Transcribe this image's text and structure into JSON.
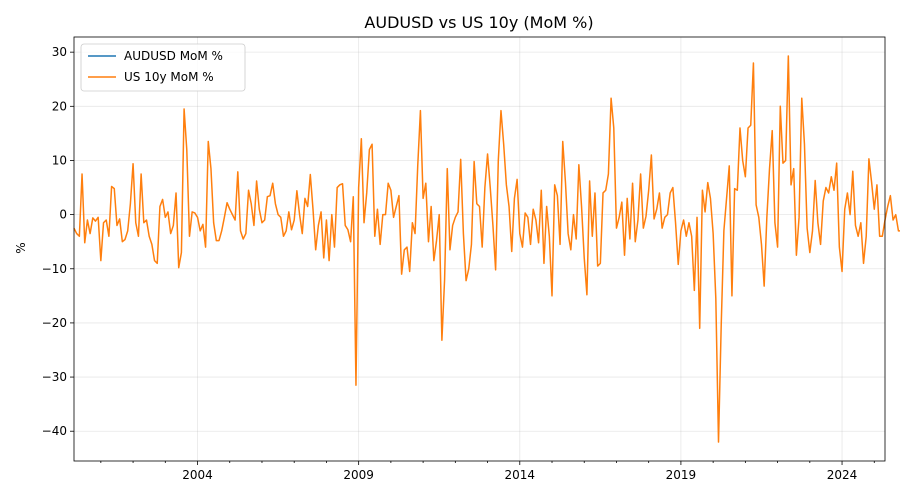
{
  "chart_data": {
    "type": "line",
    "title": "AUDUSD vs US 10y (MoM %)",
    "xlabel": "",
    "ylabel": "%",
    "xlim": [
      2000.167,
      2025.333
    ],
    "ylim": [
      -45.5,
      32.8
    ],
    "grid": true,
    "legend_position": "top-left",
    "x_ticks": [
      2004,
      2009,
      2014,
      2019,
      2024
    ],
    "y_ticks": [
      -40,
      -30,
      -20,
      -10,
      0,
      10,
      20,
      30
    ],
    "series": [
      {
        "name": "AUDUSD MoM %",
        "color": "#1f77b4",
        "values": []
      },
      {
        "name": "US 10y MoM %",
        "color": "#ff7f0e",
        "start": "2000-03",
        "frequency": "monthly",
        "values": [
          -2.5,
          -3.5,
          -4.0,
          7.5,
          -5.2,
          -1.0,
          -3.5,
          -0.6,
          -1.2,
          -0.5,
          -8.5,
          -1.5,
          -1.0,
          -4.0,
          5.2,
          4.8,
          -2.0,
          -0.8,
          -5.0,
          -4.6,
          -3.0,
          2.0,
          9.4,
          -1.5,
          -4.0,
          7.5,
          -1.5,
          -1.0,
          -4.0,
          -5.5,
          -8.5,
          -9.0,
          1.5,
          2.8,
          -0.5,
          0.5,
          -3.5,
          -2.0,
          4.0,
          -9.8,
          -7.0,
          19.5,
          12.0,
          -4.0,
          0.5,
          0.3,
          -0.5,
          -3.0,
          -1.8,
          -6.0,
          13.5,
          8.5,
          -1.5,
          -4.8,
          -4.8,
          -3.0,
          -0.5,
          2.2,
          1.0,
          0.0,
          -1.0,
          7.9,
          -3.0,
          -4.5,
          -3.5,
          4.5,
          2.0,
          -2.0,
          6.2,
          1.0,
          -1.5,
          -1.0,
          3.3,
          3.5,
          5.8,
          2.0,
          0.0,
          -0.5,
          -4.0,
          -3.0,
          0.5,
          -2.8,
          -1.0,
          4.4,
          0.0,
          -3.5,
          3.0,
          1.5,
          7.4,
          1.0,
          -6.5,
          -2.0,
          0.5,
          -8.0,
          -1.0,
          -8.5,
          0.0,
          -6.0,
          5.0,
          5.5,
          5.7,
          -2.0,
          -2.8,
          -5.0,
          3.3,
          -31.5,
          5.0,
          14.0,
          -1.5,
          4.0,
          12.0,
          13.0,
          -4.0,
          1.0,
          -5.5,
          0.0,
          0.0,
          5.8,
          4.5,
          -0.5,
          1.5,
          3.5,
          -11.0,
          -6.5,
          -6.0,
          -10.5,
          -1.5,
          -3.5,
          9.0,
          19.2,
          3.0,
          5.8,
          -5.0,
          1.5,
          -8.5,
          -4.8,
          0.0,
          -23.2,
          -12.0,
          8.5,
          -6.5,
          -2.0,
          -0.5,
          0.5,
          10.2,
          -3.5,
          -12.2,
          -10.0,
          -5.5,
          9.8,
          2.0,
          1.5,
          -6.0,
          5.0,
          11.2,
          5.0,
          -2.0,
          -10.2,
          10.0,
          19.2,
          13.0,
          5.5,
          1.5,
          -6.8,
          3.0,
          6.5,
          -3.5,
          -6.0,
          0.3,
          -0.5,
          -5.5,
          1.0,
          -1.0,
          -5.2,
          4.5,
          -9.0,
          1.5,
          -4.0,
          -15.0,
          5.5,
          3.5,
          -5.5,
          13.5,
          6.0,
          -3.5,
          -6.5,
          0.0,
          -4.5,
          9.2,
          1.5,
          -8.0,
          -14.8,
          6.2,
          -4.0,
          4.0,
          -9.5,
          -9.0,
          4.0,
          4.5,
          7.5,
          21.5,
          16.0,
          -2.5,
          -0.5,
          2.3,
          -7.5,
          3.0,
          -4.5,
          5.8,
          -5.0,
          -1.0,
          7.5,
          -2.5,
          -0.3,
          4.5,
          11.0,
          -0.8,
          1.0,
          4.0,
          -2.5,
          -0.5,
          0.0,
          4.0,
          5.0,
          -1.5,
          -9.2,
          -3.0,
          -1.0,
          -4.0,
          -1.5,
          -4.0,
          -14.0,
          -0.5,
          -21.0,
          4.5,
          0.5,
          5.9,
          3.0,
          -3.5,
          -15.5,
          -42.0,
          -20.5,
          -3.0,
          3.0,
          9.0,
          -15.0,
          4.8,
          4.5,
          16.0,
          10.0,
          7.0,
          16.0,
          16.5,
          28.0,
          1.8,
          -0.5,
          -5.5,
          -13.2,
          -0.5,
          8.5,
          15.5,
          -1.5,
          -6.0,
          20.0,
          9.5,
          10.0,
          29.3,
          5.5,
          8.5,
          -7.5,
          -0.5,
          21.5,
          13.0,
          -2.5,
          -7.0,
          -3.0,
          6.3,
          -1.5,
          -5.5,
          2.5,
          5.0,
          4.0,
          7.0,
          4.5,
          9.5,
          -6.0,
          -10.5,
          1.0,
          4.0,
          0.0,
          8.0,
          -2.0,
          -4.0,
          -1.5,
          -9.0,
          -4.0,
          10.3,
          6.0,
          1.0,
          5.5,
          -4.0,
          -4.0,
          -1.0,
          1.5,
          3.5,
          -1.0,
          0.0,
          -3.0,
          -3.0
        ]
      }
    ]
  }
}
